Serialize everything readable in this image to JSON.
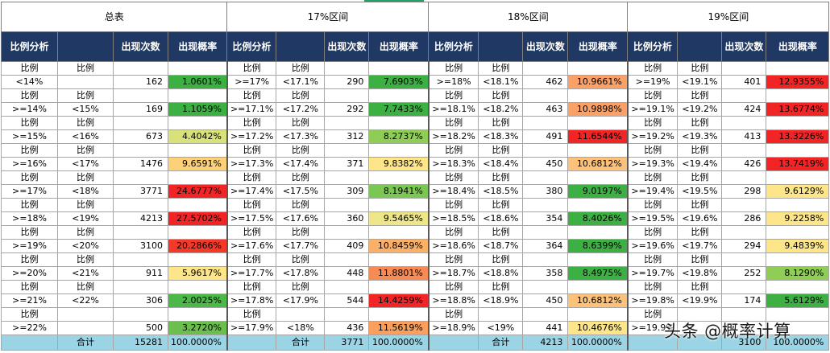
{
  "sections": [
    {
      "title": "总表",
      "headers": [
        "比例分析",
        "",
        "出现次数",
        "出现概率"
      ],
      "rows": [
        {
          "sub": [
            "比例",
            "比例"
          ],
          "lo": "<14%",
          "hi": "",
          "count": "162",
          "prob": "1.0601%",
          "color": "#3cb043"
        },
        {
          "sub": [
            "比例",
            "比例"
          ],
          "lo": ">=14%",
          "hi": "<15%",
          "count": "169",
          "prob": "1.1059%",
          "color": "#3cb043"
        },
        {
          "sub": [
            "比例",
            "比例"
          ],
          "lo": ">=15%",
          "hi": "<16%",
          "count": "673",
          "prob": "4.4042%",
          "color": "#d9e27a"
        },
        {
          "sub": [
            "比例",
            "比例"
          ],
          "lo": ">=16%",
          "hi": "<17%",
          "count": "1476",
          "prob": "9.6591%",
          "color": "#fdd17a"
        },
        {
          "sub": [
            "比例",
            "比例"
          ],
          "lo": ">=17%",
          "hi": "<18%",
          "count": "3771",
          "prob": "24.6777%",
          "color": "#f12525"
        },
        {
          "sub": [
            "比例",
            "比例"
          ],
          "lo": ">=18%",
          "hi": "<19%",
          "count": "4213",
          "prob": "27.5702%",
          "color": "#f12525"
        },
        {
          "sub": [
            "比例",
            "比例"
          ],
          "lo": ">=19%",
          "hi": "<20%",
          "count": "3100",
          "prob": "20.2866%",
          "color": "#f33a2a"
        },
        {
          "sub": [
            "比例",
            "比例"
          ],
          "lo": ">=20%",
          "hi": "<21%",
          "count": "911",
          "prob": "5.9617%",
          "color": "#fde58a"
        },
        {
          "sub": [
            "比例",
            "比例"
          ],
          "lo": ">=21%",
          "hi": "<22%",
          "count": "306",
          "prob": "2.0025%",
          "color": "#4cb84a"
        },
        {
          "sub": [
            "比例",
            ""
          ],
          "lo": ">=22%",
          "hi": "",
          "count": "500",
          "prob": "3.2720%",
          "color": "#6cbf4f"
        }
      ],
      "total": {
        "label": "合计",
        "count": "15281",
        "prob": "100.0000%"
      }
    },
    {
      "title": "17%区间",
      "headers": [
        "比例分析",
        "",
        "出现次数",
        "出现概率"
      ],
      "rows": [
        {
          "sub": [
            "比例",
            "比例"
          ],
          "lo": ">=17%",
          "hi": "<17.1%",
          "count": "290",
          "prob": "7.6903%",
          "color": "#3cb043"
        },
        {
          "sub": [
            "比例",
            "比例"
          ],
          "lo": ">=17.1%",
          "hi": "<17.2%",
          "count": "292",
          "prob": "7.7433%",
          "color": "#3cb043"
        },
        {
          "sub": [
            "比例",
            "比例"
          ],
          "lo": ">=17.2%",
          "hi": "<17.3%",
          "count": "312",
          "prob": "8.2737%",
          "color": "#8fcd57"
        },
        {
          "sub": [
            "比例",
            "比例"
          ],
          "lo": ">=17.3%",
          "hi": "<17.4%",
          "count": "371",
          "prob": "9.8382%",
          "color": "#fde58a"
        },
        {
          "sub": [
            "比例",
            "比例"
          ],
          "lo": ">=17.4%",
          "hi": "<17.5%",
          "count": "309",
          "prob": "8.1941%",
          "color": "#7cc653"
        },
        {
          "sub": [
            "比例",
            "比例"
          ],
          "lo": ">=17.5%",
          "hi": "<17.6%",
          "count": "360",
          "prob": "9.5465%",
          "color": "#eee68a"
        },
        {
          "sub": [
            "比例",
            "比例"
          ],
          "lo": ">=17.6%",
          "hi": "<17.7%",
          "count": "409",
          "prob": "10.8459%",
          "color": "#fbb068"
        },
        {
          "sub": [
            "比例",
            "比例"
          ],
          "lo": ">=17.7%",
          "hi": "<17.8%",
          "count": "448",
          "prob": "11.8801%",
          "color": "#f78b55"
        },
        {
          "sub": [
            "比例",
            "比例"
          ],
          "lo": ">=17.8%",
          "hi": "<17.9%",
          "count": "544",
          "prob": "14.4259%",
          "color": "#f12525"
        },
        {
          "sub": [
            "比例",
            ""
          ],
          "lo": ">=17.9%",
          "hi": "<18%",
          "count": "436",
          "prob": "11.5619%",
          "color": "#f9a05e"
        }
      ],
      "total": {
        "label": "合计",
        "count": "3771",
        "prob": "100.0000%"
      }
    },
    {
      "title": "18%区间",
      "headers": [
        "比例分析",
        "",
        "出现次数",
        "出现概率"
      ],
      "rows": [
        {
          "sub": [
            "比例",
            "比例"
          ],
          "lo": ">=18%",
          "hi": "<18.1%",
          "count": "462",
          "prob": "10.9661%",
          "color": "#fba066"
        },
        {
          "sub": [
            "比例",
            "比例"
          ],
          "lo": ">=18.1%",
          "hi": "<18.2%",
          "count": "463",
          "prob": "10.9898%",
          "color": "#fba066"
        },
        {
          "sub": [
            "比例",
            "比例"
          ],
          "lo": ">=18.2%",
          "hi": "<18.3%",
          "count": "491",
          "prob": "11.6544%",
          "color": "#f12525"
        },
        {
          "sub": [
            "比例",
            "比例"
          ],
          "lo": ">=18.3%",
          "hi": "<18.4%",
          "count": "450",
          "prob": "10.6812%",
          "color": "#fcc27a"
        },
        {
          "sub": [
            "比例",
            "比例"
          ],
          "lo": ">=18.4%",
          "hi": "<18.5%",
          "count": "380",
          "prob": "9.0197%",
          "color": "#3cb043"
        },
        {
          "sub": [
            "比例",
            "比例"
          ],
          "lo": ">=18.5%",
          "hi": "<18.6%",
          "count": "354",
          "prob": "8.4026%",
          "color": "#3cb043"
        },
        {
          "sub": [
            "比例",
            "比例"
          ],
          "lo": ">=18.6%",
          "hi": "<18.7%",
          "count": "364",
          "prob": "8.6399%",
          "color": "#3cb043"
        },
        {
          "sub": [
            "比例",
            "比例"
          ],
          "lo": ">=18.7%",
          "hi": "<18.8%",
          "count": "358",
          "prob": "8.4975%",
          "color": "#3cb043"
        },
        {
          "sub": [
            "比例",
            "比例"
          ],
          "lo": ">=18.8%",
          "hi": "<18.9%",
          "count": "450",
          "prob": "10.6812%",
          "color": "#fcc27a"
        },
        {
          "sub": [
            "比例",
            ""
          ],
          "lo": ">=18.9%",
          "hi": "<19%",
          "count": "441",
          "prob": "10.4676%",
          "color": "#fde58a"
        }
      ],
      "total": {
        "label": "合计",
        "count": "4213",
        "prob": "100.0000%"
      }
    },
    {
      "title": "19%区间",
      "headers": [
        "比例分析",
        "",
        "出现次数",
        "出现概率"
      ],
      "rows": [
        {
          "sub": [
            "比例",
            "比例"
          ],
          "lo": ">=19%",
          "hi": "<19.1%",
          "count": "401",
          "prob": "12.9355%",
          "color": "#f12525"
        },
        {
          "sub": [
            "比例",
            "比例"
          ],
          "lo": ">=19.1%",
          "hi": "<19.2%",
          "count": "424",
          "prob": "13.6774%",
          "color": "#f12525"
        },
        {
          "sub": [
            "比例",
            "比例"
          ],
          "lo": ">=19.2%",
          "hi": "<19.3%",
          "count": "413",
          "prob": "13.3226%",
          "color": "#f12525"
        },
        {
          "sub": [
            "比例",
            "比例"
          ],
          "lo": ">=19.3%",
          "hi": "<19.4%",
          "count": "426",
          "prob": "13.7419%",
          "color": "#f12525"
        },
        {
          "sub": [
            "比例",
            "比例"
          ],
          "lo": ">=19.4%",
          "hi": "<19.5%",
          "count": "298",
          "prob": "9.6129%",
          "color": "#fde58a"
        },
        {
          "sub": [
            "比例",
            "比例"
          ],
          "lo": ">=19.5%",
          "hi": "<19.6%",
          "count": "286",
          "prob": "9.2258%",
          "color": "#fde58a"
        },
        {
          "sub": [
            "比例",
            "比例"
          ],
          "lo": ">=19.6%",
          "hi": "<19.7%",
          "count": "294",
          "prob": "9.4839%",
          "color": "#fde58a"
        },
        {
          "sub": [
            "比例",
            "比例"
          ],
          "lo": ">=19.7%",
          "hi": "<19.8%",
          "count": "252",
          "prob": "8.1290%",
          "color": "#8fcd57"
        },
        {
          "sub": [
            "比例",
            "比例"
          ],
          "lo": ">=19.8%",
          "hi": "<19.9%",
          "count": "174",
          "prob": "5.6129%",
          "color": "#3cb043"
        },
        {
          "sub": [
            "比例",
            ""
          ],
          "lo": ">=19.9%",
          "hi": "",
          "count": "",
          "prob": "",
          "color": ""
        }
      ],
      "total": {
        "label": "",
        "count": "3100",
        "prob": "100.0000%"
      }
    }
  ],
  "watermark": "头条 @概率计算"
}
